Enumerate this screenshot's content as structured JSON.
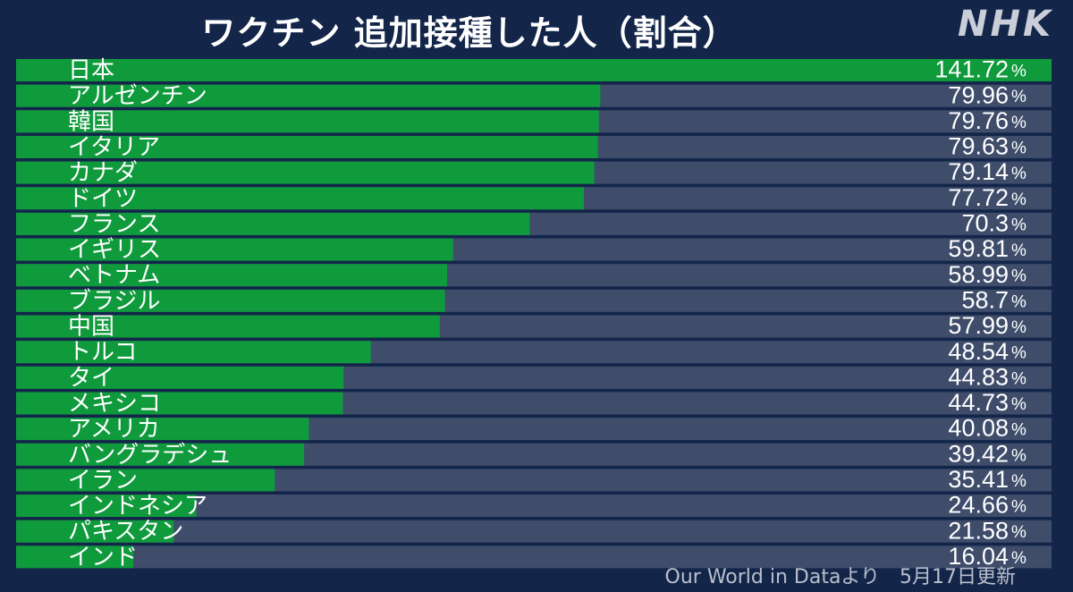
{
  "title": "ワクチン 追加接種した人（割合）",
  "logo_text": "NHK",
  "source": {
    "text": "Our World in Dataより",
    "updated": "5月17日更新"
  },
  "colors": {
    "background": "#13264a",
    "bar": "#0f9a3c",
    "track": "#3f4d6b",
    "text": "#ffffff"
  },
  "chart_data": {
    "type": "bar",
    "orientation": "horizontal",
    "value_suffix": "%",
    "axis_max": 141.72,
    "categories": [
      "日本",
      "アルゼンチン",
      "韓国",
      "イタリア",
      "カナダ",
      "ドイツ",
      "フランス",
      "イギリス",
      "ベトナム",
      "ブラジル",
      "中国",
      "トルコ",
      "タイ",
      "メキシコ",
      "アメリカ",
      "バングラデシュ",
      "イラン",
      "インドネシア",
      "パキスタン",
      "インド"
    ],
    "values": [
      141.72,
      79.96,
      79.76,
      79.63,
      79.14,
      77.72,
      70.3,
      59.81,
      58.99,
      58.7,
      57.99,
      48.54,
      44.83,
      44.73,
      40.08,
      39.42,
      35.41,
      24.66,
      21.58,
      16.04
    ],
    "value_labels": [
      "141.72",
      "79.96",
      "79.76",
      "79.63",
      "79.14",
      "77.72",
      "70.3",
      "59.81",
      "58.99",
      "58.7",
      "57.99",
      "48.54",
      "44.83",
      "44.73",
      "40.08",
      "39.42",
      "35.41",
      "24.66",
      "21.58",
      "16.04"
    ]
  }
}
